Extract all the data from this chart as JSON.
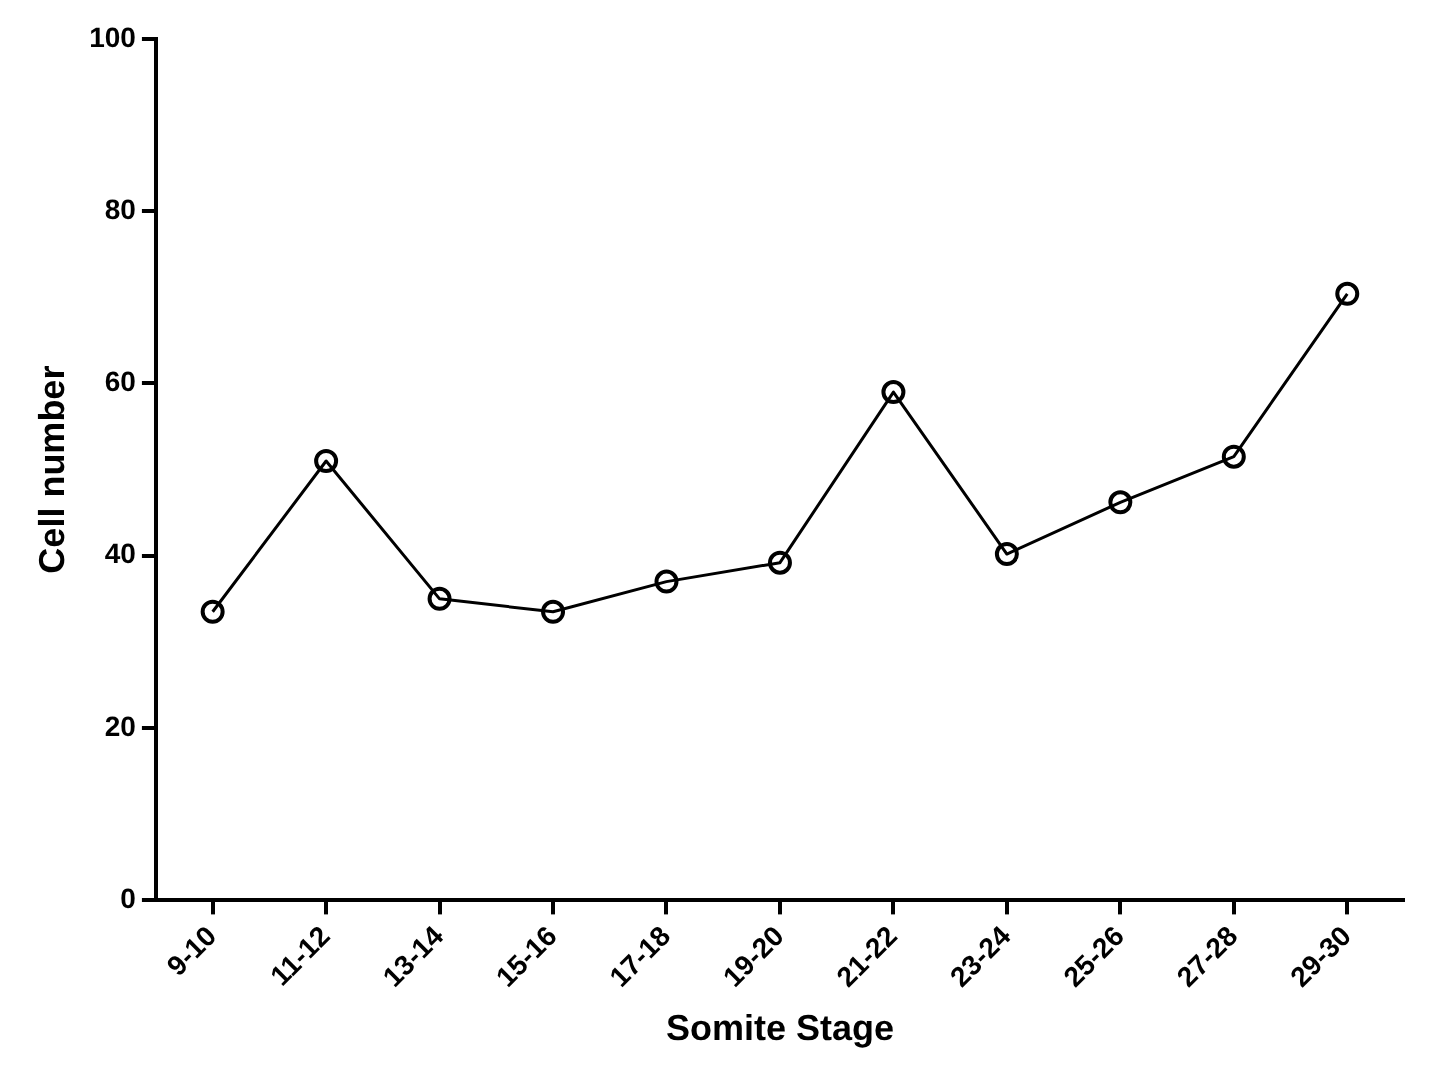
{
  "chart_data": {
    "type": "line",
    "xlabel": "Somite Stage",
    "ylabel": "Cell number",
    "categories": [
      "9-10",
      "11-12",
      "13-14",
      "15-16",
      "17-18",
      "19-20",
      "21-22",
      "23-24",
      "25-26",
      "27-28",
      "29-30"
    ],
    "series": [
      {
        "color": "#000000",
        "values": [
          33.5,
          51,
          35,
          33.5,
          37,
          39.2,
          59,
          40.2,
          46.2,
          51.5,
          70.4
        ]
      }
    ],
    "ylim": [
      0,
      100
    ],
    "yticks": [
      0,
      20,
      40,
      60,
      80,
      100
    ],
    "grid": false,
    "legend": false,
    "marker": "circle",
    "line_style": "solid"
  }
}
